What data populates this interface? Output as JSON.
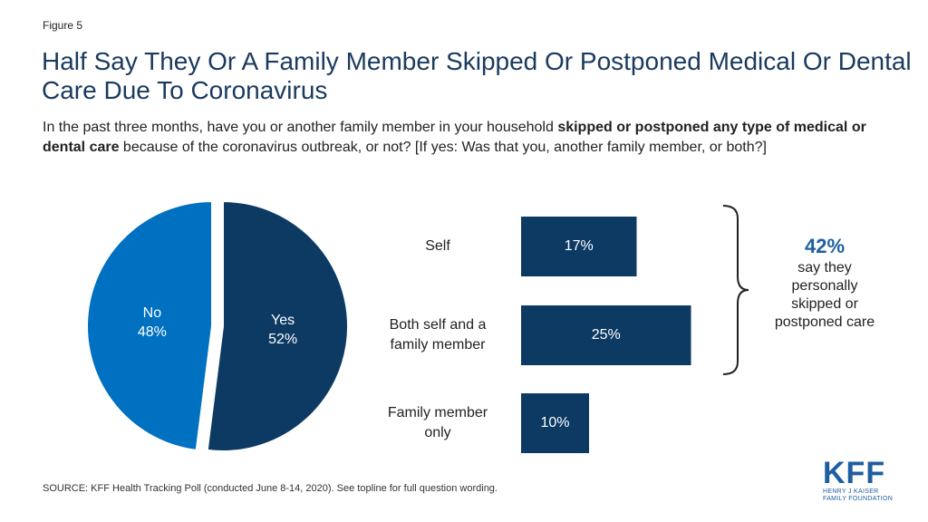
{
  "figure_label": "Figure 5",
  "title": "Half Say They Or A Family Member Skipped Or Postponed Medical Or Dental Care Due To Coronavirus",
  "question": {
    "part1": "In the past three months, have you or another family member in your household ",
    "bold1": "skipped or postponed any type of medical or dental care",
    "part2": " because of the coronavirus outbreak, or not? [If yes: Was that you, another family member, or both?]"
  },
  "colors": {
    "no": "#0070c0",
    "yes": "#0d3a63",
    "bar": "#0d3a63",
    "accent": "#1f5fa1"
  },
  "chart_data": [
    {
      "type": "pie",
      "slices": [
        {
          "label": "No",
          "display": "48%",
          "value": 48
        },
        {
          "label": "Yes",
          "display": "52%",
          "value": 52
        }
      ]
    },
    {
      "type": "bar",
      "orientation": "horizontal",
      "categories": [
        "Self",
        "Both self and a family member",
        "Family member only"
      ],
      "category_lines": [
        [
          "Self"
        ],
        [
          "Both self and a",
          "family member"
        ],
        [
          "Family member",
          "only"
        ]
      ],
      "values": [
        17,
        25,
        10
      ],
      "value_labels": [
        "17%",
        "25%",
        "10%"
      ]
    }
  ],
  "callout": {
    "pct": "42%",
    "text_lines": [
      "say they",
      "personally",
      "skipped or",
      "postponed care"
    ]
  },
  "source": "SOURCE: KFF Health Tracking Poll (conducted June 8-14, 2020). See topline for full question wording.",
  "logo": {
    "name": "KFF",
    "sub1": "HENRY J KAISER",
    "sub2": "FAMILY FOUNDATION"
  }
}
